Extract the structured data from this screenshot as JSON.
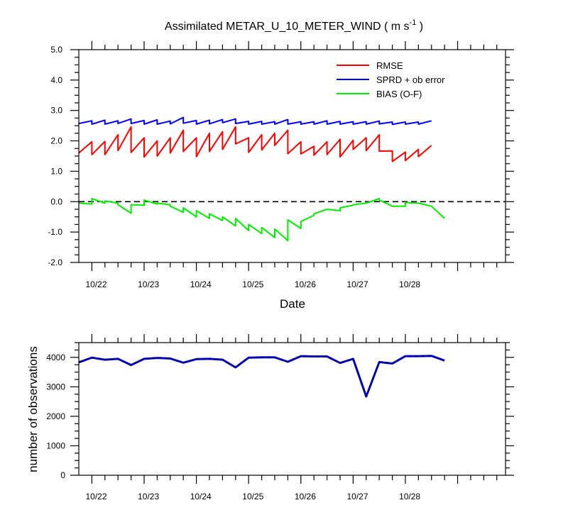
{
  "chart_data": [
    {
      "type": "line",
      "title_main": "Assimilated METAR_U_10_METER_WIND ( m s",
      "title_sup": "-1",
      "title_end": " )",
      "xlabel": "Date",
      "ylabel": "",
      "ylim": [
        -2.0,
        5.0
      ],
      "yticks": [
        -2.0,
        -1.0,
        0.0,
        1.0,
        2.0,
        3.0,
        4.0,
        5.0
      ],
      "ytick_labels": [
        "-2.0",
        "-1.0",
        "0.0",
        "1.0",
        "2.0",
        "3.0",
        "4.0",
        "5.0"
      ],
      "xlim": [
        0,
        49
      ],
      "xticks": [
        1.5,
        7.5,
        13.5,
        19.5,
        25.5,
        31.5,
        37.5,
        43.5
      ],
      "xtick_labels": [
        "10/22",
        "10/23",
        "10/24",
        "10/25",
        "10/26",
        "10/27",
        "10/28"
      ],
      "xtick_label_pos": [
        2,
        8,
        14,
        20,
        26,
        32,
        38
      ],
      "legend_position": "top-right",
      "reference_line": {
        "y": 0,
        "style": "dashed"
      },
      "colors": {
        "RMSE": "#ff0000",
        "SPRD + ob error": "#0000ff",
        "BIAS (O-F)": "#00ee00"
      },
      "series": [
        {
          "name": "RMSE",
          "points": [
            [
              0,
              1.6
            ],
            [
              1.5,
              1.97
            ],
            [
              1.5,
              1.55
            ],
            [
              3,
              1.98
            ],
            [
              3,
              1.55
            ],
            [
              4.5,
              2.2
            ],
            [
              4.5,
              1.68
            ],
            [
              6,
              2.46
            ],
            [
              6,
              1.62
            ],
            [
              7.5,
              2.1
            ],
            [
              7.5,
              1.47
            ],
            [
              9,
              2.0
            ],
            [
              9,
              1.5
            ],
            [
              10.5,
              2.1
            ],
            [
              10.5,
              1.6
            ],
            [
              12,
              2.35
            ],
            [
              12,
              1.65
            ],
            [
              13.5,
              2.1
            ],
            [
              13.5,
              1.48
            ],
            [
              15,
              2.25
            ],
            [
              15,
              1.65
            ],
            [
              16.5,
              2.3
            ],
            [
              16.5,
              1.72
            ],
            [
              18,
              2.46
            ],
            [
              18,
              1.9
            ],
            [
              19.5,
              2.1
            ],
            [
              19.5,
              1.62
            ],
            [
              21,
              2.2
            ],
            [
              21,
              1.7
            ],
            [
              22.5,
              2.25
            ],
            [
              22.5,
              1.85
            ],
            [
              24,
              2.35
            ],
            [
              24,
              1.58
            ],
            [
              25.5,
              1.97
            ],
            [
              25.5,
              1.57
            ],
            [
              27,
              1.82
            ],
            [
              27,
              1.53
            ],
            [
              28.5,
              1.97
            ],
            [
              28.5,
              1.55
            ],
            [
              30,
              2.05
            ],
            [
              30,
              1.47
            ],
            [
              31.5,
              2.02
            ],
            [
              31.5,
              1.72
            ],
            [
              33,
              2.1
            ],
            [
              33,
              1.68
            ],
            [
              34.5,
              2.2
            ],
            [
              34.5,
              1.66
            ],
            [
              36,
              1.67
            ],
            [
              36,
              1.32
            ],
            [
              37.5,
              1.63
            ],
            [
              37.5,
              1.35
            ],
            [
              39,
              1.72
            ],
            [
              39,
              1.48
            ],
            [
              40.5,
              1.85
            ]
          ]
        },
        {
          "name": "SPRD + ob error",
          "points": [
            [
              0,
              2.57
            ],
            [
              1.5,
              2.66
            ],
            [
              1.5,
              2.55
            ],
            [
              3,
              2.68
            ],
            [
              3,
              2.55
            ],
            [
              4.5,
              2.66
            ],
            [
              4.5,
              2.57
            ],
            [
              6,
              2.72
            ],
            [
              6,
              2.57
            ],
            [
              7.5,
              2.67
            ],
            [
              7.5,
              2.55
            ],
            [
              9,
              2.69
            ],
            [
              9,
              2.55
            ],
            [
              10.5,
              2.65
            ],
            [
              10.5,
              2.56
            ],
            [
              12,
              2.77
            ],
            [
              12,
              2.58
            ],
            [
              13.5,
              2.67
            ],
            [
              13.5,
              2.55
            ],
            [
              15,
              2.68
            ],
            [
              15,
              2.56
            ],
            [
              16.5,
              2.7
            ],
            [
              16.5,
              2.6
            ],
            [
              18,
              2.72
            ],
            [
              18,
              2.57
            ],
            [
              19.5,
              2.64
            ],
            [
              19.5,
              2.55
            ],
            [
              21,
              2.64
            ],
            [
              21,
              2.55
            ],
            [
              22.5,
              2.63
            ],
            [
              22.5,
              2.55
            ],
            [
              24,
              2.7
            ],
            [
              24,
              2.55
            ],
            [
              25.5,
              2.63
            ],
            [
              25.5,
              2.55
            ],
            [
              27,
              2.63
            ],
            [
              27,
              2.55
            ],
            [
              28.5,
              2.66
            ],
            [
              28.5,
              2.55
            ],
            [
              30,
              2.64
            ],
            [
              30,
              2.55
            ],
            [
              31.5,
              2.63
            ],
            [
              31.5,
              2.55
            ],
            [
              33,
              2.63
            ],
            [
              33,
              2.55
            ],
            [
              34.5,
              2.65
            ],
            [
              34.5,
              2.56
            ],
            [
              36,
              2.62
            ],
            [
              36,
              2.54
            ],
            [
              37.5,
              2.62
            ],
            [
              37.5,
              2.55
            ],
            [
              39,
              2.62
            ],
            [
              39,
              2.55
            ],
            [
              40.5,
              2.66
            ]
          ]
        },
        {
          "name": "BIAS (O-F)",
          "points": [
            [
              0,
              -0.05
            ],
            [
              1.5,
              -0.08
            ],
            [
              1.5,
              0.1
            ],
            [
              3,
              -0.05
            ],
            [
              3,
              0.02
            ],
            [
              4.5,
              -0.05
            ],
            [
              4.5,
              -0.1
            ],
            [
              6,
              -0.38
            ],
            [
              6,
              -0.1
            ],
            [
              7.5,
              -0.12
            ],
            [
              7.5,
              0.05
            ],
            [
              9,
              -0.08
            ],
            [
              9,
              -0.05
            ],
            [
              10.5,
              -0.1
            ],
            [
              10.5,
              -0.15
            ],
            [
              12,
              -0.35
            ],
            [
              12,
              -0.2
            ],
            [
              13.5,
              -0.5
            ],
            [
              13.5,
              -0.3
            ],
            [
              15,
              -0.55
            ],
            [
              15,
              -0.4
            ],
            [
              16.5,
              -0.62
            ],
            [
              16.5,
              -0.5
            ],
            [
              18,
              -0.8
            ],
            [
              18,
              -0.55
            ],
            [
              19.5,
              -0.95
            ],
            [
              19.5,
              -0.75
            ],
            [
              21,
              -1.05
            ],
            [
              21,
              -0.85
            ],
            [
              22.5,
              -1.18
            ],
            [
              22.5,
              -0.9
            ],
            [
              24,
              -1.28
            ],
            [
              24,
              -0.6
            ],
            [
              25.5,
              -0.88
            ],
            [
              25.5,
              -0.65
            ],
            [
              27,
              -0.45
            ],
            [
              27,
              -0.4
            ],
            [
              28.5,
              -0.25
            ],
            [
              28.5,
              -0.25
            ],
            [
              30,
              -0.3
            ],
            [
              30,
              -0.2
            ],
            [
              31.5,
              -0.12
            ],
            [
              31.5,
              -0.1
            ],
            [
              33,
              -0.05
            ],
            [
              33,
              -0.05
            ],
            [
              34.5,
              0.1
            ],
            [
              34.5,
              0.05
            ],
            [
              36,
              -0.15
            ],
            [
              36,
              -0.15
            ],
            [
              37.5,
              -0.15
            ],
            [
              37.5,
              -0.03
            ],
            [
              39,
              -0.05
            ],
            [
              39,
              -0.05
            ],
            [
              40.5,
              -0.15
            ],
            [
              42,
              -0.55
            ]
          ]
        }
      ]
    },
    {
      "type": "line",
      "title": "",
      "xlabel": "",
      "ylabel": "number of observations",
      "ylim": [
        0,
        4500
      ],
      "yticks": [
        0,
        1000,
        2000,
        3000,
        4000
      ],
      "ytick_labels": [
        "0",
        "1000",
        "2000",
        "3000",
        "4000"
      ],
      "xlim": [
        0,
        49
      ],
      "xtick_labels": [
        "10/22",
        "10/23",
        "10/24",
        "10/25",
        "10/26",
        "10/27",
        "10/28"
      ],
      "xtick_label_pos": [
        2,
        8,
        14,
        20,
        26,
        32,
        38
      ],
      "colors": {
        "possible": "#0000ff",
        "used": "#000000"
      },
      "series": [
        {
          "name": "observations",
          "x": [
            0,
            1.5,
            3,
            4.5,
            6,
            7.5,
            9,
            10.5,
            12,
            13.5,
            15,
            16.5,
            18,
            19.5,
            21,
            22.5,
            24,
            25.5,
            27,
            28.5,
            30,
            31.5,
            33,
            34.5,
            36,
            37.5,
            39,
            40.5,
            42
          ],
          "values": [
            3830,
            3990,
            3920,
            3950,
            3740,
            3950,
            3980,
            3960,
            3820,
            3940,
            3950,
            3920,
            3660,
            3990,
            4000,
            4000,
            3850,
            4040,
            4030,
            4030,
            3810,
            3950,
            2670,
            3840,
            3790,
            4040,
            4040,
            4050,
            3890
          ]
        }
      ]
    }
  ],
  "legend": [
    {
      "label": "RMSE",
      "color": "#ff0000"
    },
    {
      "label": "SPRD + ob error",
      "color": "#0000ff"
    },
    {
      "label": "BIAS (O-F)",
      "color": "#00ee00"
    }
  ]
}
